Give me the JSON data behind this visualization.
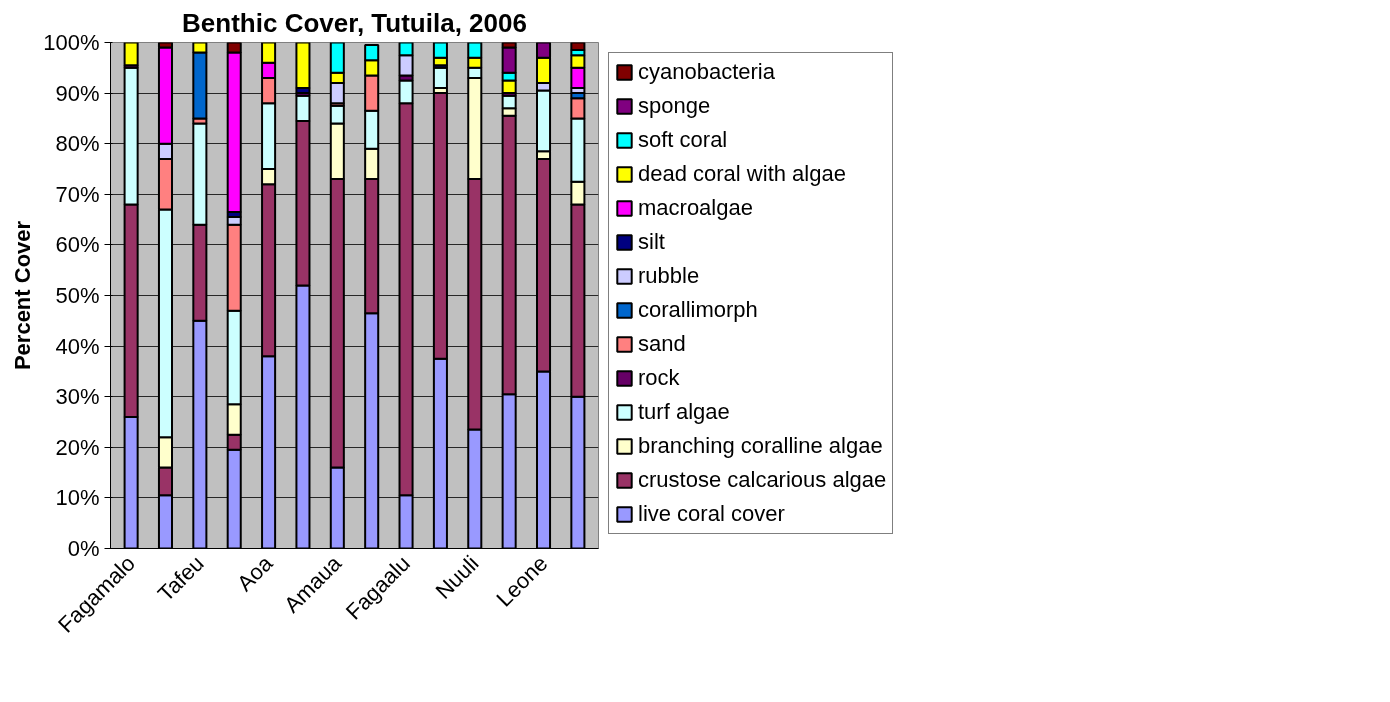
{
  "chart_data": {
    "type": "bar",
    "stacked": true,
    "title": "Benthic Cover, Tutuila, 2006",
    "ylabel": "Percent Cover",
    "categories": [
      "Fagamalo",
      null,
      "Tafeu",
      null,
      "Aoa",
      null,
      "Amaua",
      null,
      "Fagaalu",
      null,
      "Nuuli",
      null,
      "Leone",
      null
    ],
    "ylim": [
      0,
      100
    ],
    "yticks": [
      {
        "value": 0,
        "label": "0%"
      },
      {
        "value": 10,
        "label": "10%"
      },
      {
        "value": 20,
        "label": "20%"
      },
      {
        "value": 30,
        "label": "30%"
      },
      {
        "value": 40,
        "label": "40%"
      },
      {
        "value": 50,
        "label": "50%"
      },
      {
        "value": 60,
        "label": "60%"
      },
      {
        "value": 70,
        "label": "70%"
      },
      {
        "value": 80,
        "label": "80%"
      },
      {
        "value": 90,
        "label": "90%"
      },
      {
        "value": 100,
        "label": "100%"
      }
    ],
    "grid": "y",
    "legend": "right",
    "series": [
      {
        "name": "live coral cover",
        "color": "#9999ff",
        "values": [
          26,
          10.5,
          45,
          19.5,
          38,
          52,
          16,
          46.5,
          10.5,
          37.5,
          23.5,
          30.5,
          35,
          30
        ]
      },
      {
        "name": "crustose calcarious algae",
        "color": "#993366",
        "values": [
          42,
          5.5,
          19,
          3,
          34,
          32.5,
          57,
          26.5,
          77.5,
          52.5,
          49.5,
          55,
          42,
          38
        ]
      },
      {
        "name": "branching coralline algae",
        "color": "#ffffcc",
        "values": [
          0,
          6,
          0,
          6,
          3,
          0,
          11,
          6,
          0,
          1,
          20,
          1.5,
          1.5,
          4.5
        ]
      },
      {
        "name": "turf algae",
        "color": "#ccffff",
        "values": [
          27,
          45,
          20,
          18.5,
          13,
          5,
          3.5,
          7.5,
          4.5,
          4,
          2,
          2.5,
          12,
          12.5
        ]
      },
      {
        "name": "rock",
        "color": "#660066",
        "values": [
          0.5,
          0,
          0,
          0,
          0,
          0.5,
          0,
          0,
          1,
          0,
          0,
          0.5,
          0,
          0
        ]
      },
      {
        "name": "sand",
        "color": "#ff8080",
        "values": [
          0,
          10,
          1,
          17,
          5,
          0,
          0.5,
          7,
          0,
          0,
          0,
          0,
          0,
          4
        ]
      },
      {
        "name": "corallimorph",
        "color": "#0066cc",
        "values": [
          0,
          0,
          13,
          0,
          0,
          0,
          0,
          0,
          0,
          0,
          0,
          0,
          0,
          1
        ]
      },
      {
        "name": "rubble",
        "color": "#ccccff",
        "values": [
          0,
          3,
          0,
          1.5,
          0,
          0,
          4,
          0,
          4,
          0,
          0,
          0,
          1.5,
          1
        ]
      },
      {
        "name": "silt",
        "color": "#000080",
        "values": [
          0,
          0,
          0,
          1,
          0,
          1,
          0,
          null,
          0,
          0.5,
          0,
          0,
          0,
          0
        ]
      },
      {
        "name": "macroalgae",
        "color": "#ff00ff",
        "values": [
          0,
          19,
          0,
          31.5,
          3,
          0,
          0,
          0,
          0,
          0,
          0,
          0,
          0,
          4
        ]
      },
      {
        "name": "dead coral with algae",
        "color": "#ffff00",
        "values": [
          4.5,
          0,
          2,
          0,
          4,
          9,
          2,
          3,
          0,
          1.5,
          2,
          2.5,
          5,
          2.5
        ]
      },
      {
        "name": "soft coral",
        "color": "#00ffff",
        "values": [
          0,
          0,
          0,
          0,
          0,
          0,
          6,
          3,
          2.5,
          3,
          3,
          1.5,
          0,
          1
        ]
      },
      {
        "name": "sponge",
        "color": "#800080",
        "values": [
          0,
          0,
          0,
          0,
          0,
          0,
          0,
          0,
          0,
          0,
          0,
          5,
          3,
          0
        ]
      },
      {
        "name": "cyanobacteria",
        "color": "#800000",
        "values": [
          0,
          1,
          0,
          2,
          0,
          0,
          0,
          0,
          0,
          0,
          0,
          1,
          0,
          1.5
        ]
      }
    ]
  }
}
